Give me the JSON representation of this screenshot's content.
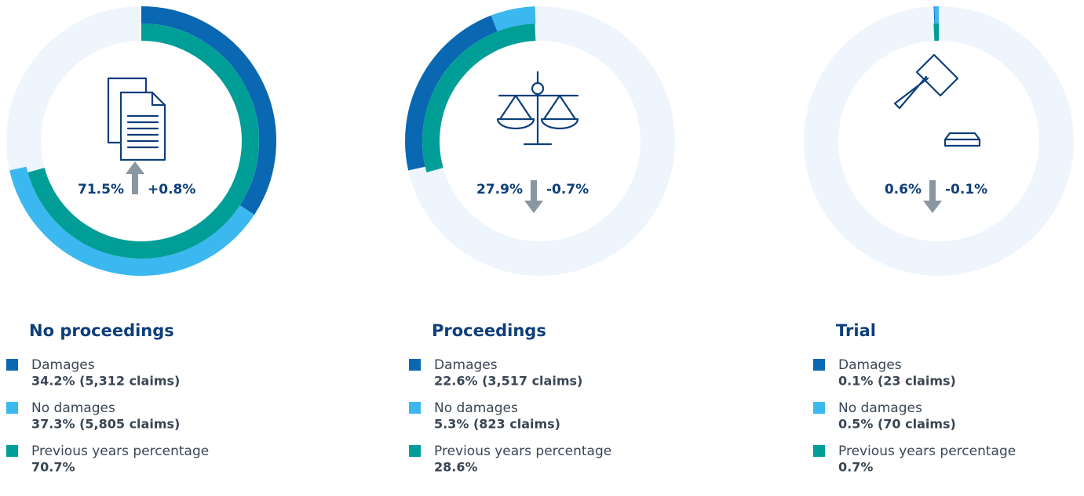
{
  "chart_data": [
    {
      "type": "donut",
      "title": "No proceedings",
      "total": {
        "value": 71.5,
        "label": "71.5%"
      },
      "change": {
        "value": 0.8,
        "label": "+0.8%"
      },
      "series": [
        {
          "name": "Damages",
          "color": "#0a67b2",
          "values": [
            34.2
          ],
          "value_labels": [
            "34.2% (5,312 claims)"
          ]
        },
        {
          "name": "No damages",
          "color": "#3bb8ef",
          "values": [
            37.3
          ],
          "value_labels": [
            "37.3% (5,805 claims)"
          ]
        },
        {
          "name": "Previous years percentage",
          "color": "#009e96",
          "values": [
            70.7
          ],
          "value_labels": [
            "70.7%"
          ]
        }
      ]
    },
    {
      "type": "donut",
      "title": "Proceedings",
      "total": {
        "value": 27.9,
        "label": "27.9%"
      },
      "change": {
        "value": -0.7,
        "label": "-0.7%"
      },
      "series": [
        {
          "name": "Damages",
          "color": "#0a67b2",
          "values": [
            22.6
          ],
          "value_labels": [
            "22.6% (3,517 claims)"
          ]
        },
        {
          "name": "No damages",
          "color": "#3bb8ef",
          "values": [
            5.3
          ],
          "value_labels": [
            "5.3% (823 claims)"
          ]
        },
        {
          "name": "Previous years percentage",
          "color": "#009e96",
          "values": [
            28.6
          ],
          "value_labels": [
            "28.6%"
          ]
        }
      ]
    },
    {
      "type": "donut",
      "title": "Trial",
      "total": {
        "value": 0.6,
        "label": "0.6%"
      },
      "change": {
        "value": -0.1,
        "label": "-0.1%"
      },
      "series": [
        {
          "name": "Damages",
          "color": "#0a67b2",
          "values": [
            0.1
          ],
          "value_labels": [
            "0.1% (23 claims)"
          ]
        },
        {
          "name": "No damages",
          "color": "#3bb8ef",
          "values": [
            0.5
          ],
          "value_labels": [
            "0.5% (70 claims)"
          ]
        },
        {
          "name": "Previous years percentage",
          "color": "#009e96",
          "values": [
            0.7
          ],
          "value_labels": [
            "0.7%"
          ]
        }
      ]
    }
  ]
}
